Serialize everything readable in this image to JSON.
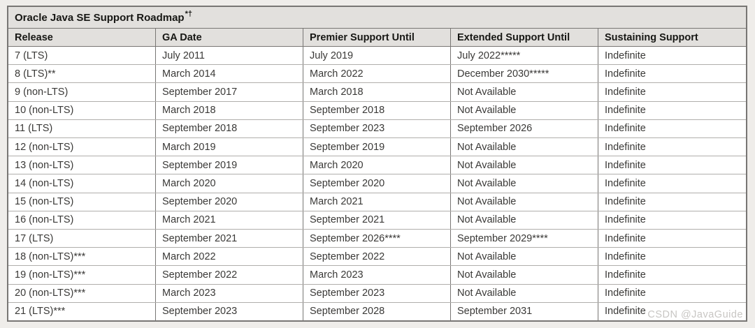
{
  "page": {
    "background": "#efedea",
    "watermark": "CSDN @JavaGuide"
  },
  "table": {
    "title": "Oracle Java SE Support Roadmap",
    "title_superscript": "*†"
  },
  "colors": {
    "header_bg": "#e2e0dd",
    "body_bg": "#ffffff",
    "border_dark": "#787674",
    "border_light": "#b0aeab",
    "title_text": "#171714",
    "body_text": "#3a3937",
    "watermark_text": "#c8c6c3"
  },
  "chart_data": {
    "type": "table",
    "title": "Oracle Java SE Support Roadmap*†",
    "columns": [
      "Release",
      "GA Date",
      "Premier Support Until",
      "Extended Support Until",
      "Sustaining Support"
    ],
    "rows": [
      [
        "7 (LTS)",
        "July 2011",
        "July 2019",
        "July 2022*****",
        "Indefinite"
      ],
      [
        "8 (LTS)**",
        "March 2014",
        "March 2022",
        "December 2030*****",
        "Indefinite"
      ],
      [
        "9 (non-LTS)",
        "September 2017",
        "March 2018",
        "Not Available",
        "Indefinite"
      ],
      [
        "10 (non-LTS)",
        "March 2018",
        "September 2018",
        "Not Available",
        "Indefinite"
      ],
      [
        "11 (LTS)",
        "September 2018",
        "September 2023",
        "September 2026",
        "Indefinite"
      ],
      [
        "12 (non-LTS)",
        "March 2019",
        "September 2019",
        "Not Available",
        "Indefinite"
      ],
      [
        "13 (non-LTS)",
        "September 2019",
        "March 2020",
        "Not Available",
        "Indefinite"
      ],
      [
        "14 (non-LTS)",
        "March 2020",
        "September 2020",
        "Not Available",
        "Indefinite"
      ],
      [
        "15 (non-LTS)",
        "September 2020",
        "March 2021",
        "Not Available",
        "Indefinite"
      ],
      [
        "16 (non-LTS)",
        "March 2021",
        "September 2021",
        "Not Available",
        "Indefinite"
      ],
      [
        "17 (LTS)",
        "September 2021",
        "September 2026****",
        "September 2029****",
        "Indefinite"
      ],
      [
        "18 (non-LTS)***",
        "March 2022",
        "September 2022",
        "Not Available",
        "Indefinite"
      ],
      [
        "19 (non-LTS)***",
        "September 2022",
        "March 2023",
        "Not Available",
        "Indefinite"
      ],
      [
        "20 (non-LTS)***",
        "March 2023",
        "September 2023",
        "Not Available",
        "Indefinite"
      ],
      [
        "21 (LTS)***",
        "September 2023",
        "September 2028",
        "September 2031",
        "Indefinite"
      ]
    ]
  }
}
